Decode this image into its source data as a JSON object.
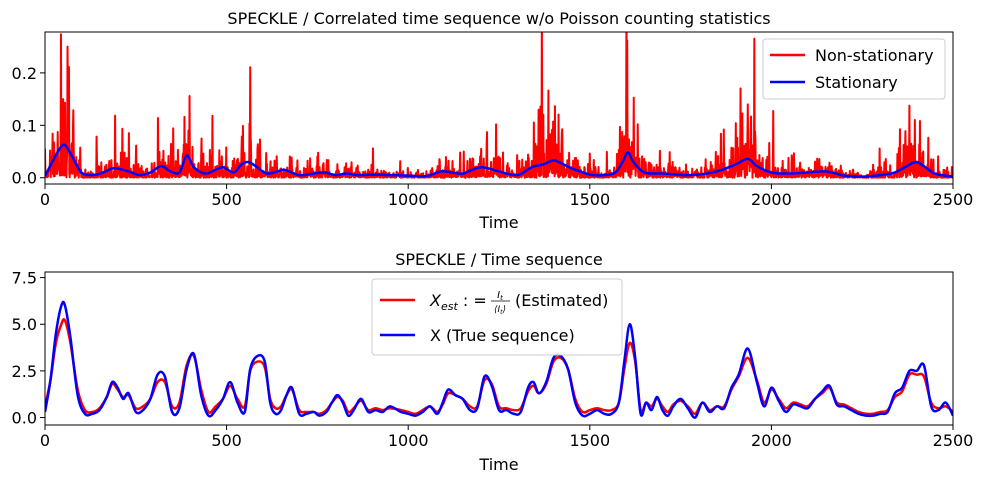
{
  "chart_data": [
    {
      "type": "line",
      "title": "SPECKLE / Correlated time sequence w/o Poisson counting statistics",
      "xlabel": "Time",
      "ylabel": "",
      "xlim": [
        0,
        2500
      ],
      "ylim": [
        -0.012,
        0.278
      ],
      "xticks": [
        0,
        500,
        1000,
        1500,
        2000,
        2500
      ],
      "yticks": [
        0.0,
        0.1,
        0.2
      ],
      "ytick_labels": [
        "0.0",
        "0.1",
        "0.2"
      ],
      "grid": false,
      "legend_position": "top-right",
      "series": [
        {
          "name": "Non-stationary",
          "color": "#ff0000",
          "style": "noisy",
          "peak_values": [
            [
              62,
              0.25
            ],
            [
              1603,
              0.262
            ],
            [
              50,
              0.15
            ],
            [
              1935,
              0.14
            ],
            [
              395,
              0.09
            ],
            [
              2395,
              0.11
            ]
          ]
        },
        {
          "name": "Stationary",
          "color": "#0000ff",
          "style": "smooth",
          "x": [
            0,
            20,
            40,
            55,
            75,
            100,
            130,
            160,
            190,
            230,
            260,
            290,
            320,
            345,
            370,
            390,
            410,
            440,
            470,
            490,
            520,
            540,
            560,
            580,
            610,
            640,
            660,
            700,
            740,
            770,
            800,
            830,
            860,
            900,
            950,
            1000,
            1050,
            1090,
            1120,
            1150,
            1200,
            1250,
            1300,
            1340,
            1370,
            1400,
            1420,
            1450,
            1500,
            1540,
            1570,
            1590,
            1605,
            1620,
            1650,
            1700,
            1760,
            1800,
            1850,
            1900,
            1935,
            1960,
            2000,
            2050,
            2100,
            2150,
            2200,
            2250,
            2300,
            2340,
            2380,
            2400,
            2420,
            2450,
            2500
          ],
          "y": [
            0.003,
            0.03,
            0.055,
            0.062,
            0.04,
            0.01,
            0.005,
            0.01,
            0.018,
            0.012,
            0.005,
            0.01,
            0.022,
            0.012,
            0.01,
            0.042,
            0.02,
            0.008,
            0.015,
            0.02,
            0.01,
            0.025,
            0.03,
            0.022,
            0.008,
            0.012,
            0.015,
            0.005,
            0.008,
            0.01,
            0.005,
            0.008,
            0.005,
            0.006,
            0.005,
            0.004,
            0.003,
            0.012,
            0.01,
            0.008,
            0.02,
            0.012,
            0.005,
            0.02,
            0.025,
            0.033,
            0.028,
            0.018,
            0.006,
            0.005,
            0.01,
            0.03,
            0.048,
            0.03,
            0.01,
            0.008,
            0.005,
            0.006,
            0.012,
            0.025,
            0.036,
            0.022,
            0.01,
            0.008,
            0.01,
            0.012,
            0.004,
            0.002,
            0.005,
            0.01,
            0.025,
            0.03,
            0.022,
            0.008,
            0.002
          ]
        }
      ]
    },
    {
      "type": "line",
      "title": "SPECKLE / Time sequence",
      "xlabel": "Time",
      "ylabel": "",
      "xlim": [
        0,
        2500
      ],
      "ylim": [
        -0.4,
        7.8
      ],
      "xticks": [
        0,
        500,
        1000,
        1500,
        2000,
        2500
      ],
      "yticks": [
        0.0,
        2.5,
        5.0,
        7.5
      ],
      "ytick_labels": [
        "0.0",
        "2.5",
        "5.0",
        "7.5"
      ],
      "grid": false,
      "legend_position": "top-center",
      "series": [
        {
          "name": "X_est := I_t / ⟨I_t⟩ (Estimated)",
          "legend_main": "X",
          "legend_sub": "est",
          "legend_frac_num": "I",
          "legend_frac_num_sub": "t",
          "legend_frac_den": "⟨I",
          "legend_frac_den_sub": "t",
          "legend_frac_den_close": "⟩",
          "legend_assign": " : = ",
          "legend_suffix": "(Estimated)",
          "color": "#ff0000",
          "x": [
            0,
            15,
            30,
            45,
            55,
            70,
            90,
            110,
            130,
            150,
            170,
            185,
            200,
            215,
            230,
            250,
            270,
            290,
            310,
            330,
            350,
            370,
            390,
            410,
            430,
            450,
            470,
            490,
            510,
            530,
            550,
            565,
            585,
            605,
            620,
            635,
            650,
            665,
            680,
            700,
            720,
            740,
            755,
            775,
            790,
            805,
            820,
            835,
            850,
            870,
            890,
            910,
            930,
            950,
            980,
            1000,
            1020,
            1040,
            1060,
            1080,
            1095,
            1110,
            1130,
            1150,
            1170,
            1190,
            1210,
            1230,
            1250,
            1270,
            1290,
            1310,
            1330,
            1345,
            1360,
            1380,
            1400,
            1420,
            1440,
            1460,
            1480,
            1500,
            1520,
            1540,
            1560,
            1580,
            1595,
            1610,
            1625,
            1640,
            1655,
            1670,
            1685,
            1700,
            1715,
            1730,
            1750,
            1770,
            1790,
            1810,
            1830,
            1850,
            1870,
            1890,
            1910,
            1935,
            1960,
            1980,
            2000,
            2020,
            2040,
            2060,
            2080,
            2100,
            2120,
            2140,
            2160,
            2180,
            2200,
            2220,
            2240,
            2260,
            2280,
            2300,
            2320,
            2340,
            2360,
            2380,
            2400,
            2420,
            2440,
            2460,
            2480,
            2500
          ],
          "y": [
            0.6,
            2.0,
            4.0,
            5.0,
            5.2,
            4.0,
            1.5,
            0.4,
            0.3,
            0.5,
            1.1,
            1.8,
            1.5,
            1.1,
            1.2,
            0.5,
            0.6,
            1.0,
            1.9,
            1.9,
            0.6,
            0.8,
            2.8,
            3.3,
            1.5,
            0.3,
            0.6,
            1.0,
            1.7,
            1.0,
            0.6,
            2.5,
            3.0,
            2.7,
            1.0,
            0.5,
            0.6,
            1.2,
            1.5,
            0.4,
            0.3,
            0.3,
            0.2,
            0.4,
            0.8,
            1.1,
            0.9,
            0.3,
            0.5,
            0.9,
            0.4,
            0.5,
            0.4,
            0.5,
            0.4,
            0.3,
            0.2,
            0.4,
            0.6,
            0.3,
            0.7,
            1.3,
            1.2,
            1.0,
            0.6,
            0.6,
            2.0,
            1.8,
            0.6,
            0.5,
            0.4,
            0.5,
            1.4,
            1.7,
            1.3,
            1.8,
            3.0,
            3.2,
            2.6,
            1.0,
            0.3,
            0.4,
            0.5,
            0.4,
            0.4,
            0.8,
            2.6,
            4.0,
            3.0,
            0.4,
            0.8,
            0.6,
            1.0,
            0.6,
            0.3,
            0.7,
            0.9,
            0.6,
            0.2,
            0.8,
            0.4,
            0.6,
            0.6,
            1.5,
            2.2,
            3.2,
            2.0,
            0.8,
            1.5,
            1.0,
            0.5,
            0.8,
            0.7,
            0.6,
            1.0,
            1.3,
            1.6,
            0.8,
            0.7,
            0.5,
            0.3,
            0.2,
            0.2,
            0.3,
            0.4,
            1.1,
            1.4,
            2.3,
            2.3,
            2.2,
            0.8,
            0.5,
            0.6,
            0.3
          ]
        },
        {
          "name": "X (True sequence)",
          "legend_label": "X (True sequence)",
          "color": "#0000ff",
          "x": [
            0,
            15,
            30,
            45,
            55,
            70,
            90,
            110,
            130,
            150,
            170,
            185,
            200,
            215,
            230,
            250,
            270,
            290,
            310,
            330,
            350,
            370,
            390,
            410,
            430,
            450,
            470,
            490,
            510,
            530,
            550,
            565,
            585,
            605,
            620,
            635,
            650,
            665,
            680,
            700,
            720,
            740,
            755,
            775,
            790,
            805,
            820,
            835,
            850,
            870,
            890,
            910,
            930,
            950,
            980,
            1000,
            1020,
            1040,
            1060,
            1080,
            1095,
            1110,
            1130,
            1150,
            1170,
            1190,
            1210,
            1230,
            1250,
            1270,
            1290,
            1310,
            1330,
            1345,
            1360,
            1380,
            1400,
            1420,
            1440,
            1460,
            1480,
            1500,
            1520,
            1540,
            1560,
            1580,
            1595,
            1610,
            1625,
            1640,
            1655,
            1670,
            1685,
            1700,
            1715,
            1730,
            1750,
            1770,
            1790,
            1810,
            1830,
            1850,
            1870,
            1890,
            1910,
            1935,
            1960,
            1980,
            2000,
            2020,
            2040,
            2060,
            2080,
            2100,
            2120,
            2140,
            2160,
            2180,
            2200,
            2220,
            2240,
            2260,
            2280,
            2300,
            2320,
            2340,
            2360,
            2380,
            2400,
            2420,
            2440,
            2460,
            2480,
            2500
          ],
          "y": [
            0.3,
            2.0,
            4.5,
            6.0,
            6.0,
            4.3,
            1.2,
            0.2,
            0.2,
            0.4,
            1.1,
            1.9,
            1.6,
            1.0,
            1.3,
            0.3,
            0.4,
            1.0,
            2.3,
            2.2,
            0.3,
            0.5,
            2.6,
            3.4,
            1.2,
            0.1,
            0.4,
            1.0,
            1.9,
            0.8,
            0.3,
            2.6,
            3.3,
            3.0,
            0.8,
            0.2,
            0.4,
            1.2,
            1.6,
            0.2,
            0.2,
            0.3,
            0.1,
            0.3,
            0.8,
            1.2,
            0.8,
            0.1,
            0.4,
            1.0,
            0.3,
            0.4,
            0.3,
            0.6,
            0.3,
            0.2,
            0.1,
            0.3,
            0.6,
            0.2,
            0.8,
            1.5,
            1.2,
            1.0,
            0.4,
            0.5,
            2.2,
            1.7,
            0.4,
            0.4,
            0.2,
            0.3,
            1.6,
            1.9,
            1.3,
            1.9,
            3.2,
            3.3,
            2.6,
            0.8,
            0.1,
            0.2,
            0.4,
            0.2,
            0.2,
            0.8,
            3.0,
            5.0,
            3.2,
            0.2,
            0.8,
            0.4,
            1.1,
            0.4,
            0.1,
            0.6,
            1.0,
            0.5,
            0.0,
            0.8,
            0.3,
            0.6,
            0.5,
            1.6,
            2.3,
            3.7,
            1.9,
            0.6,
            1.6,
            0.9,
            0.3,
            0.7,
            0.6,
            0.5,
            1.0,
            1.4,
            1.7,
            0.7,
            0.6,
            0.4,
            0.2,
            0.1,
            0.1,
            0.2,
            0.3,
            1.3,
            1.6,
            2.5,
            2.5,
            2.8,
            0.6,
            0.4,
            0.8,
            0.1
          ]
        }
      ]
    }
  ]
}
